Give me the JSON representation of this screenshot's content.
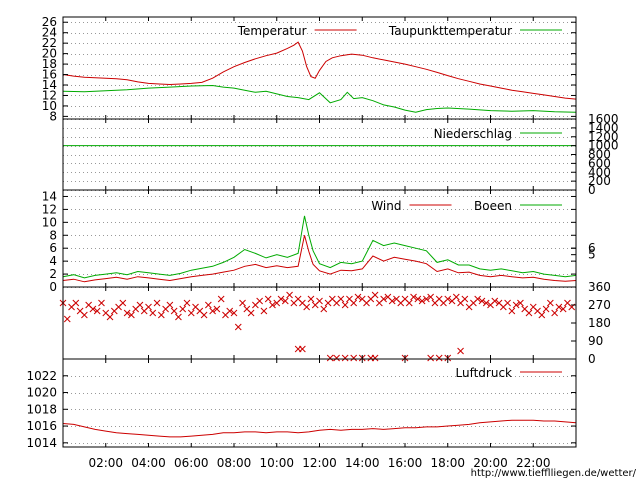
{
  "chart_data": [
    {
      "type": "line",
      "id": "temperature",
      "title": "",
      "xlabel": "",
      "ylabel": "",
      "y_ticks": [
        8,
        10,
        12,
        14,
        16,
        18,
        20,
        22,
        24,
        26
      ],
      "ylim": [
        7.5,
        27
      ],
      "grid": true,
      "legend_position": "top-right",
      "series": [
        {
          "name": "Temperatur",
          "color": "#cc0000",
          "x": [
            0.0,
            0.5,
            1.0,
            1.5,
            2.0,
            2.5,
            3.0,
            3.5,
            4.0,
            4.5,
            5.0,
            5.5,
            6.0,
            6.5,
            7.0,
            7.5,
            8.0,
            8.5,
            9.0,
            9.5,
            10.0,
            10.5,
            10.8,
            11.0,
            11.2,
            11.4,
            11.6,
            11.8,
            12.0,
            12.3,
            12.6,
            13.0,
            13.5,
            14.0,
            14.5,
            15.0,
            15.5,
            16.0,
            16.5,
            17.0,
            17.5,
            18.0,
            18.5,
            19.0,
            19.5,
            20.0,
            20.5,
            21.0,
            21.5,
            22.0,
            22.5,
            23.0,
            23.5,
            24.0
          ],
          "values": [
            16.0,
            15.7,
            15.5,
            15.4,
            15.3,
            15.2,
            15.0,
            14.6,
            14.3,
            14.2,
            14.1,
            14.2,
            14.3,
            14.5,
            15.3,
            16.5,
            17.5,
            18.3,
            19.0,
            19.6,
            20.1,
            21.0,
            21.6,
            22.2,
            20.5,
            17.5,
            15.6,
            15.3,
            16.8,
            18.5,
            19.2,
            19.6,
            19.9,
            19.7,
            19.2,
            18.8,
            18.4,
            18.0,
            17.5,
            17.0,
            16.4,
            15.8,
            15.2,
            14.7,
            14.2,
            13.8,
            13.4,
            13.0,
            12.7,
            12.4,
            12.1,
            11.8,
            11.5,
            11.3
          ]
        },
        {
          "name": "Taupunkttemperatur",
          "color": "#00aa00",
          "x": [
            0.0,
            1.0,
            2.0,
            3.0,
            4.0,
            5.0,
            6.0,
            7.0,
            7.5,
            8.0,
            8.5,
            9.0,
            9.5,
            10.0,
            10.5,
            11.0,
            11.5,
            12.0,
            12.5,
            13.0,
            13.3,
            13.6,
            14.0,
            14.5,
            15.0,
            15.5,
            16.0,
            16.5,
            17.0,
            17.5,
            18.0,
            19.0,
            20.0,
            21.0,
            22.0,
            23.0,
            24.0
          ],
          "values": [
            12.8,
            12.7,
            12.9,
            13.1,
            13.4,
            13.6,
            13.8,
            13.9,
            13.6,
            13.4,
            13.0,
            12.6,
            12.8,
            12.3,
            11.8,
            11.6,
            11.2,
            12.5,
            10.6,
            11.2,
            12.6,
            11.4,
            11.6,
            11.0,
            10.2,
            9.8,
            9.2,
            8.8,
            9.3,
            9.5,
            9.6,
            9.4,
            9.1,
            9.0,
            9.1,
            8.9,
            8.8
          ]
        }
      ]
    },
    {
      "type": "line",
      "id": "precipitation",
      "title": "",
      "xlabel": "",
      "ylabel": "",
      "y_ticks_right": [
        0,
        200,
        400,
        600,
        800,
        1000,
        1200,
        1400,
        1600
      ],
      "ylim": [
        0,
        1600
      ],
      "grid": true,
      "legend_position": "top-right",
      "series": [
        {
          "name": "Niederschlag",
          "color": "#00aa00",
          "x": [
            0,
            24
          ],
          "values": [
            1000,
            1000
          ]
        }
      ]
    },
    {
      "type": "line",
      "id": "wind",
      "title": "",
      "xlabel": "",
      "ylabel": "",
      "y_ticks": [
        0,
        2,
        4,
        6,
        8,
        10,
        12,
        14
      ],
      "y_ticks_right": [
        5,
        6
      ],
      "ylim": [
        0,
        15
      ],
      "grid": true,
      "legend_position": "top-right",
      "series": [
        {
          "name": "Wind",
          "color": "#cc0000",
          "x": [
            0.0,
            0.5,
            1.0,
            1.5,
            2.0,
            2.5,
            3.0,
            3.5,
            4.0,
            4.5,
            5.0,
            5.5,
            6.0,
            6.5,
            7.0,
            7.5,
            8.0,
            8.5,
            9.0,
            9.5,
            10.0,
            10.5,
            11.0,
            11.3,
            11.5,
            11.7,
            12.0,
            12.5,
            13.0,
            13.5,
            14.0,
            14.5,
            15.0,
            15.5,
            16.0,
            16.5,
            17.0,
            17.5,
            18.0,
            18.5,
            19.0,
            19.5,
            20.0,
            20.5,
            21.0,
            21.5,
            22.0,
            22.5,
            23.0,
            23.5,
            24.0
          ],
          "values": [
            1.0,
            1.2,
            0.8,
            1.1,
            1.3,
            1.5,
            1.2,
            1.6,
            1.4,
            1.2,
            1.0,
            1.3,
            1.6,
            1.8,
            2.0,
            2.3,
            2.6,
            3.2,
            3.5,
            3.0,
            3.3,
            3.0,
            3.2,
            8.0,
            5.5,
            3.5,
            2.5,
            2.0,
            2.6,
            2.5,
            2.8,
            4.8,
            4.0,
            4.6,
            4.3,
            4.0,
            3.6,
            2.4,
            2.8,
            2.2,
            2.3,
            1.8,
            1.6,
            1.8,
            1.6,
            1.4,
            1.5,
            1.2,
            1.0,
            0.9,
            1.0
          ]
        },
        {
          "name": "Boeen",
          "color": "#00aa00",
          "x": [
            0.0,
            0.5,
            1.0,
            1.5,
            2.0,
            2.5,
            3.0,
            3.5,
            4.0,
            4.5,
            5.0,
            5.5,
            6.0,
            6.5,
            7.0,
            7.5,
            8.0,
            8.5,
            9.0,
            9.5,
            10.0,
            10.5,
            11.0,
            11.3,
            11.5,
            11.7,
            12.0,
            12.5,
            13.0,
            13.5,
            14.0,
            14.5,
            15.0,
            15.5,
            16.0,
            16.5,
            17.0,
            17.5,
            18.0,
            18.5,
            19.0,
            19.5,
            20.0,
            20.5,
            21.0,
            21.5,
            22.0,
            22.5,
            23.0,
            23.5,
            24.0
          ],
          "values": [
            1.6,
            1.9,
            1.4,
            1.8,
            2.0,
            2.2,
            1.9,
            2.4,
            2.2,
            2.0,
            1.8,
            2.1,
            2.6,
            2.9,
            3.2,
            3.8,
            4.6,
            5.8,
            5.2,
            4.5,
            5.0,
            4.6,
            5.2,
            11.0,
            8.0,
            5.6,
            3.6,
            3.0,
            3.8,
            3.6,
            4.0,
            7.2,
            6.4,
            6.8,
            6.4,
            6.0,
            5.6,
            3.8,
            4.2,
            3.4,
            3.4,
            2.8,
            2.6,
            2.8,
            2.5,
            2.2,
            2.4,
            2.0,
            1.8,
            1.6,
            1.8
          ]
        }
      ]
    },
    {
      "type": "scatter",
      "id": "wind-direction",
      "title": "",
      "xlabel": "",
      "ylabel": "",
      "y_ticks_right": [
        0,
        90,
        180,
        270,
        360
      ],
      "ylim": [
        0,
        360
      ],
      "grid": false,
      "series": [
        {
          "name": "",
          "color": "#cc0000",
          "marker": "x",
          "x": [
            0.0,
            0.2,
            0.4,
            0.6,
            0.8,
            1.0,
            1.2,
            1.4,
            1.6,
            1.8,
            2.0,
            2.2,
            2.4,
            2.6,
            2.8,
            3.0,
            3.2,
            3.4,
            3.6,
            3.8,
            4.0,
            4.2,
            4.4,
            4.6,
            4.8,
            5.0,
            5.2,
            5.4,
            5.6,
            5.8,
            6.0,
            6.2,
            6.4,
            6.6,
            6.8,
            7.0,
            7.2,
            7.4,
            7.6,
            7.8,
            8.0,
            8.2,
            8.4,
            8.6,
            8.8,
            9.0,
            9.2,
            9.4,
            9.6,
            9.8,
            10.0,
            10.2,
            10.4,
            10.6,
            10.8,
            11.0,
            11.2,
            11.4,
            11.6,
            11.8,
            12.0,
            12.2,
            12.4,
            12.6,
            12.8,
            13.0,
            13.2,
            13.4,
            13.6,
            13.8,
            14.0,
            14.2,
            14.4,
            14.6,
            14.8,
            15.0,
            15.2,
            15.4,
            15.6,
            15.8,
            16.0,
            16.2,
            16.4,
            16.6,
            16.8,
            17.0,
            17.2,
            17.4,
            17.6,
            17.8,
            18.0,
            18.2,
            18.4,
            18.6,
            18.8,
            19.0,
            19.2,
            19.4,
            19.6,
            19.8,
            20.0,
            20.2,
            20.4,
            20.6,
            20.8,
            21.0,
            21.2,
            21.4,
            21.6,
            21.8,
            22.0,
            22.2,
            22.4,
            22.6,
            22.8,
            23.0,
            23.2,
            23.4,
            23.6,
            23.8,
            11.2,
            12.5,
            13.2,
            14.0,
            14.6,
            16.0,
            17.2,
            18.0,
            18.6,
            11.0,
            12.8,
            13.6,
            14.4,
            17.6
          ],
          "values": [
            280,
            200,
            260,
            280,
            240,
            220,
            270,
            250,
            240,
            280,
            230,
            210,
            240,
            260,
            280,
            230,
            220,
            250,
            270,
            240,
            260,
            230,
            280,
            220,
            250,
            270,
            240,
            210,
            250,
            280,
            230,
            260,
            240,
            220,
            270,
            240,
            250,
            300,
            220,
            240,
            230,
            160,
            280,
            250,
            230,
            270,
            290,
            240,
            300,
            270,
            280,
            300,
            290,
            320,
            280,
            300,
            280,
            260,
            300,
            270,
            290,
            250,
            280,
            300,
            280,
            300,
            270,
            300,
            280,
            310,
            300,
            280,
            300,
            320,
            280,
            300,
            310,
            290,
            300,
            280,
            300,
            280,
            310,
            300,
            290,
            300,
            310,
            280,
            300,
            280,
            300,
            290,
            310,
            280,
            300,
            260,
            280,
            300,
            290,
            280,
            270,
            290,
            280,
            260,
            280,
            240,
            270,
            280,
            250,
            230,
            260,
            240,
            220,
            250,
            280,
            230,
            260,
            250,
            280,
            260,
            50,
            5,
            5,
            5,
            5,
            5,
            5,
            5,
            40,
            50,
            5,
            5,
            5,
            5
          ]
        }
      ]
    },
    {
      "type": "line",
      "id": "pressure",
      "title": "",
      "xlabel": "",
      "ylabel": "",
      "y_ticks": [
        1014,
        1016,
        1018,
        1020,
        1022
      ],
      "ylim": [
        1013.5,
        1024
      ],
      "grid": true,
      "legend_position": "top-right",
      "x_ticks": [
        "02:00",
        "04:00",
        "06:00",
        "08:00",
        "10:00",
        "12:00",
        "14:00",
        "16:00",
        "18:00",
        "20:00",
        "22:00"
      ],
      "series": [
        {
          "name": "Luftdruck",
          "color": "#cc0000",
          "x": [
            0.0,
            0.5,
            1.0,
            1.5,
            2.0,
            2.5,
            3.0,
            3.5,
            4.0,
            4.5,
            5.0,
            5.5,
            6.0,
            6.5,
            7.0,
            7.5,
            8.0,
            8.5,
            9.0,
            9.5,
            10.0,
            10.5,
            11.0,
            11.5,
            12.0,
            12.5,
            13.0,
            13.5,
            14.0,
            14.5,
            15.0,
            15.5,
            16.0,
            16.5,
            17.0,
            17.5,
            18.0,
            18.5,
            19.0,
            19.5,
            20.0,
            20.5,
            21.0,
            21.5,
            22.0,
            22.5,
            23.0,
            23.5,
            24.0
          ],
          "values": [
            1016.3,
            1016.2,
            1015.9,
            1015.6,
            1015.4,
            1015.2,
            1015.1,
            1015.0,
            1014.9,
            1014.8,
            1014.7,
            1014.7,
            1014.8,
            1014.9,
            1015.0,
            1015.2,
            1015.2,
            1015.3,
            1015.3,
            1015.2,
            1015.3,
            1015.3,
            1015.2,
            1015.3,
            1015.5,
            1015.6,
            1015.5,
            1015.6,
            1015.6,
            1015.7,
            1015.6,
            1015.7,
            1015.8,
            1015.8,
            1015.9,
            1015.9,
            1016.0,
            1016.1,
            1016.2,
            1016.4,
            1016.5,
            1016.6,
            1016.7,
            1016.7,
            1016.7,
            1016.6,
            1016.6,
            1016.5,
            1016.4
          ]
        }
      ]
    }
  ],
  "footer": {
    "url_text": "http://www.tiefflliegen.de/wetter/"
  }
}
